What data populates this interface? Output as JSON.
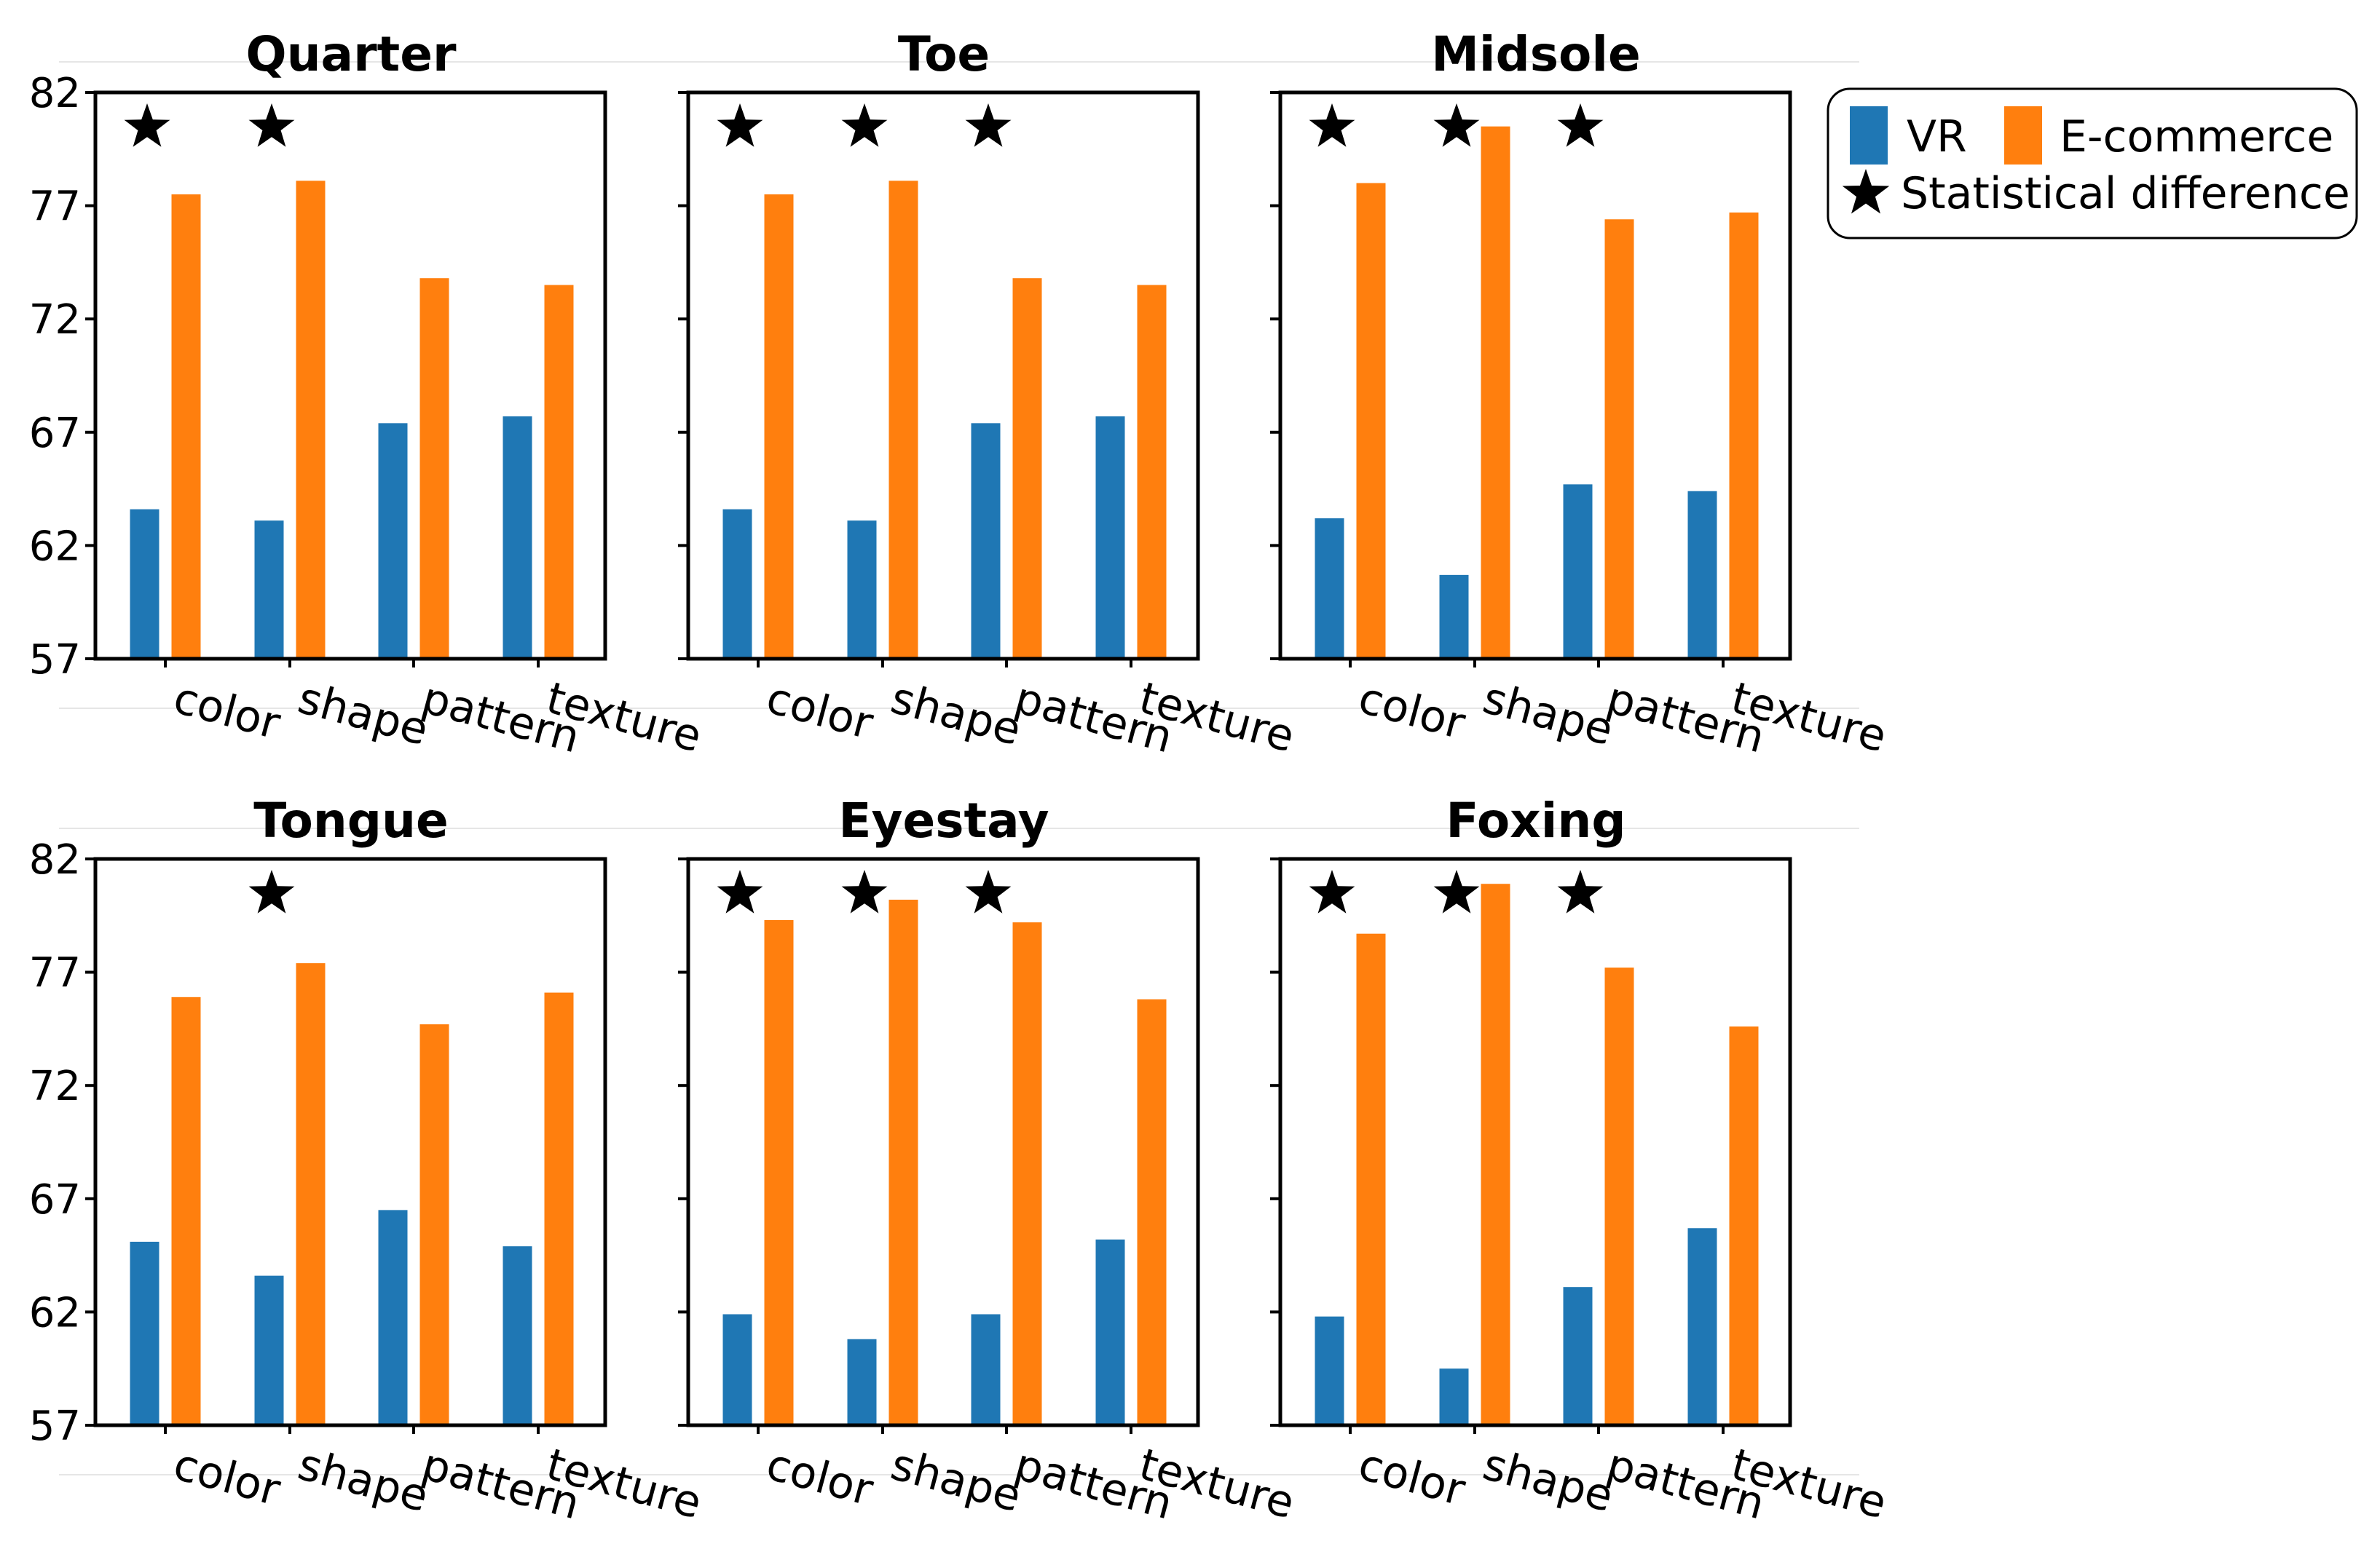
{
  "chart_data": {
    "type": "bar",
    "categories": [
      "color",
      "shape",
      "pattern",
      "texture"
    ],
    "series_names": [
      "VR",
      "E-commerce"
    ],
    "colors": {
      "VR": "#1f77b4",
      "E-commerce": "#ff7f0e",
      "star": "#000000",
      "axis": "#000000"
    },
    "ylim": [
      57,
      82
    ],
    "yticks": [
      57,
      62,
      67,
      72,
      77,
      82
    ],
    "ytick_labels": [
      "57",
      "62",
      "67",
      "72",
      "77",
      "82"
    ],
    "legend": {
      "position": "top-right, outside plots",
      "entries": [
        "VR",
        "E-commerce",
        "Statistical difference"
      ]
    },
    "panels": [
      {
        "title": "Quarter",
        "VR": [
          63.6,
          63.1,
          67.4,
          67.7
        ],
        "E-commerce": [
          77.5,
          78.1,
          73.8,
          73.5
        ],
        "significant": [
          "color",
          "shape"
        ]
      },
      {
        "title": "Toe",
        "VR": [
          63.6,
          63.1,
          67.4,
          67.7
        ],
        "E-commerce": [
          77.5,
          78.1,
          73.8,
          73.5
        ],
        "significant": [
          "color",
          "shape",
          "pattern"
        ]
      },
      {
        "title": "Midsole",
        "VR": [
          63.2,
          60.7,
          64.7,
          64.4
        ],
        "E-commerce": [
          78.0,
          80.5,
          76.4,
          76.7
        ],
        "significant": [
          "color",
          "shape",
          "pattern"
        ]
      },
      {
        "title": "Tongue",
        "VR": [
          65.1,
          63.6,
          66.5,
          64.9
        ],
        "E-commerce": [
          75.9,
          77.4,
          74.7,
          76.1
        ],
        "significant": [
          "shape"
        ]
      },
      {
        "title": "Eyestay",
        "VR": [
          61.9,
          60.8,
          61.9,
          65.2
        ],
        "E-commerce": [
          79.3,
          80.2,
          79.2,
          75.8
        ],
        "significant": [
          "color",
          "shape",
          "pattern"
        ]
      },
      {
        "title": "Foxing",
        "VR": [
          61.8,
          59.5,
          63.1,
          65.7
        ],
        "E-commerce": [
          78.7,
          80.9,
          77.2,
          74.6
        ],
        "significant": [
          "color",
          "shape",
          "pattern"
        ]
      }
    ]
  }
}
